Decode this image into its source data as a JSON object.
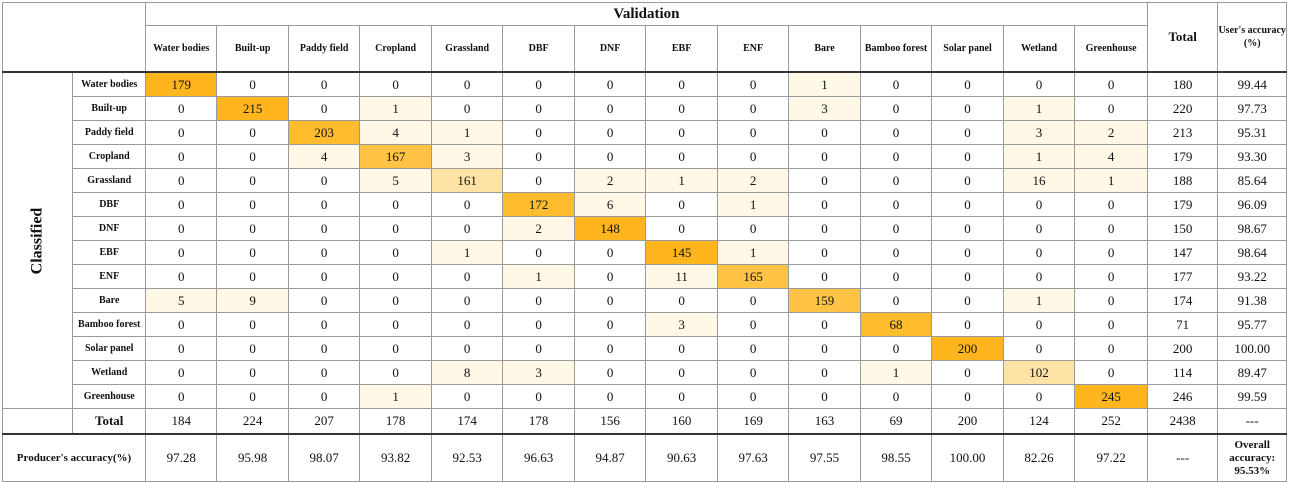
{
  "header": {
    "validation": "Validation",
    "total": "Total",
    "users_accuracy": "User's accuracy (%)",
    "classified": "Classified",
    "producers_accuracy": "Producer's accuracy(%)",
    "overall_label": "Overall accuracy:",
    "overall_value": "95.53%"
  },
  "classes": [
    "Water bodies",
    "Built-up",
    "Paddy field",
    "Cropland",
    "Grassland",
    "DBF",
    "DNF",
    "EBF",
    "ENF",
    "Bare",
    "Bamboo forest",
    "Solar panel",
    "Wetland",
    "Greenhouse"
  ],
  "matrix": [
    [
      179,
      0,
      0,
      0,
      0,
      0,
      0,
      0,
      0,
      1,
      0,
      0,
      0,
      0
    ],
    [
      0,
      215,
      0,
      1,
      0,
      0,
      0,
      0,
      0,
      3,
      0,
      0,
      1,
      0
    ],
    [
      0,
      0,
      203,
      4,
      1,
      0,
      0,
      0,
      0,
      0,
      0,
      0,
      3,
      2
    ],
    [
      0,
      0,
      4,
      167,
      3,
      0,
      0,
      0,
      0,
      0,
      0,
      0,
      1,
      4
    ],
    [
      0,
      0,
      0,
      5,
      161,
      0,
      2,
      1,
      2,
      0,
      0,
      0,
      16,
      1
    ],
    [
      0,
      0,
      0,
      0,
      0,
      172,
      6,
      0,
      1,
      0,
      0,
      0,
      0,
      0
    ],
    [
      0,
      0,
      0,
      0,
      0,
      2,
      148,
      0,
      0,
      0,
      0,
      0,
      0,
      0
    ],
    [
      0,
      0,
      0,
      0,
      1,
      0,
      0,
      145,
      1,
      0,
      0,
      0,
      0,
      0
    ],
    [
      0,
      0,
      0,
      0,
      0,
      1,
      0,
      11,
      165,
      0,
      0,
      0,
      0,
      0
    ],
    [
      5,
      9,
      0,
      0,
      0,
      0,
      0,
      0,
      0,
      159,
      0,
      0,
      1,
      0
    ],
    [
      0,
      0,
      0,
      0,
      0,
      0,
      0,
      3,
      0,
      0,
      68,
      0,
      0,
      0
    ],
    [
      0,
      0,
      0,
      0,
      0,
      0,
      0,
      0,
      0,
      0,
      0,
      200,
      0,
      0
    ],
    [
      0,
      0,
      0,
      0,
      8,
      3,
      0,
      0,
      0,
      0,
      1,
      0,
      102,
      0
    ],
    [
      0,
      0,
      0,
      1,
      0,
      0,
      0,
      0,
      0,
      0,
      0,
      0,
      0,
      245
    ]
  ],
  "row_totals": [
    180,
    220,
    213,
    179,
    188,
    179,
    150,
    147,
    177,
    174,
    71,
    200,
    114,
    246
  ],
  "users_accuracy": [
    "99.44",
    "97.73",
    "95.31",
    "93.30",
    "85.64",
    "96.09",
    "98.67",
    "98.64",
    "93.22",
    "91.38",
    "95.77",
    "100.00",
    "89.47",
    "99.59"
  ],
  "col_totals": [
    184,
    224,
    207,
    178,
    174,
    178,
    156,
    160,
    169,
    163,
    69,
    200,
    124,
    252
  ],
  "grand_total": 2438,
  "total_ua_placeholder": "---",
  "producers_accuracy": [
    "97.28",
    "95.98",
    "98.07",
    "93.82",
    "92.53",
    "96.63",
    "94.87",
    "90.63",
    "97.63",
    "97.55",
    "98.55",
    "100.00",
    "82.26",
    "97.22"
  ],
  "pa_total_placeholder": "---",
  "colors": {
    "diag_high": "#ffb61e",
    "diag_low": "#ffe2a6",
    "offdiag_light": "#fff8e6"
  }
}
